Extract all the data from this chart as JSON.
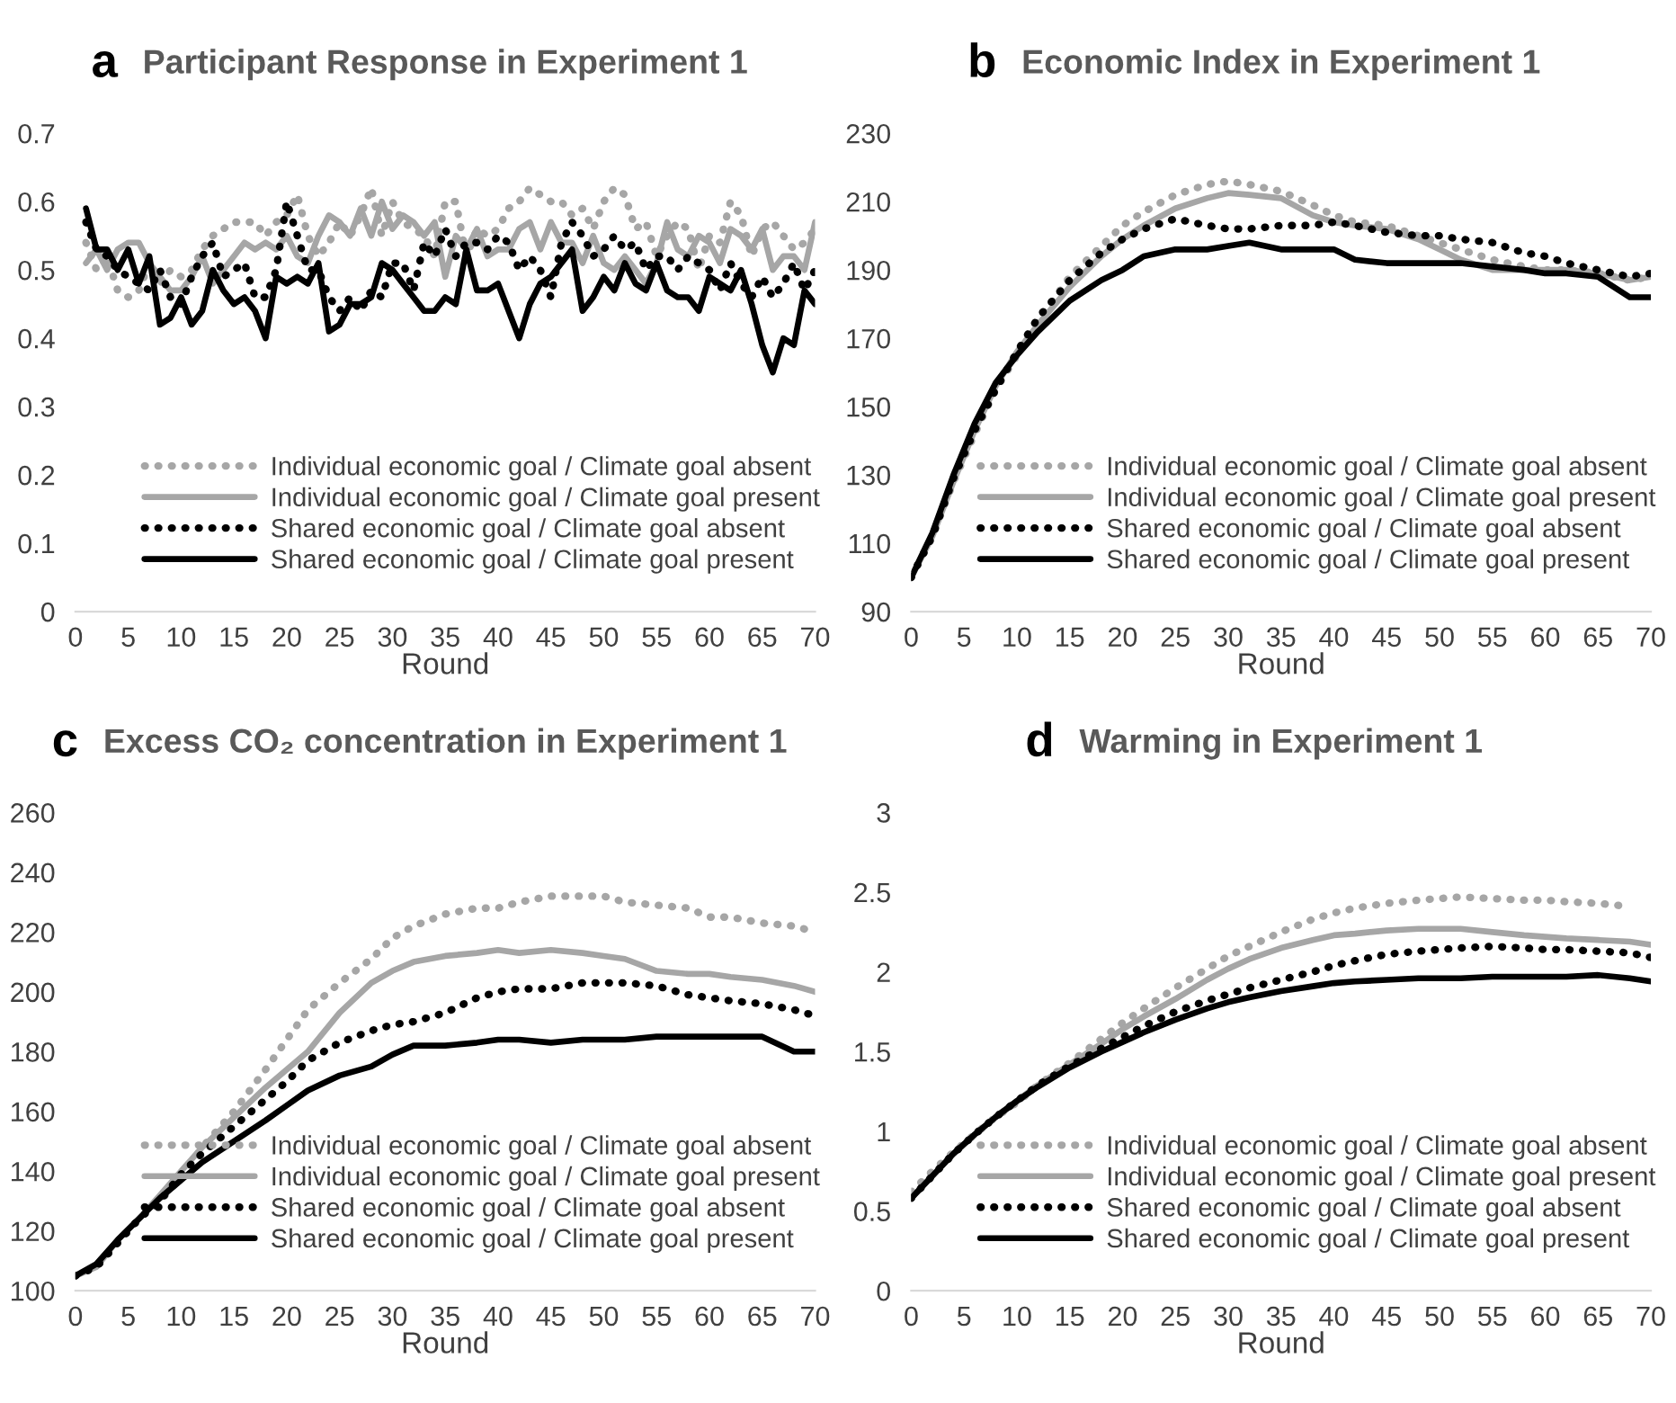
{
  "chart_data": [
    {
      "type": "line",
      "title": "Participant Response in Experiment 1",
      "annotations": [
        "a"
      ],
      "xlabel": "Round",
      "xlim": [
        0,
        70
      ],
      "xticks": [
        0,
        5,
        10,
        15,
        20,
        25,
        30,
        35,
        40,
        45,
        50,
        55,
        60,
        65,
        70
      ],
      "ylim": [
        0,
        0.7
      ],
      "yticks": [
        0,
        0.1,
        0.2,
        0.3,
        0.4,
        0.5,
        0.6,
        0.7
      ],
      "legend": "bottom",
      "x": [
        1,
        2,
        3,
        4,
        5,
        6,
        7,
        8,
        9,
        10,
        11,
        12,
        13,
        14,
        15,
        16,
        17,
        18,
        19,
        20,
        21,
        22,
        23,
        24,
        25,
        26,
        27,
        28,
        29,
        30,
        31,
        32,
        33,
        34,
        35,
        36,
        37,
        38,
        39,
        40,
        41,
        42,
        43,
        44,
        45,
        46,
        47,
        48,
        49,
        50,
        51,
        52,
        53,
        54,
        55,
        56,
        57,
        58,
        59,
        60,
        61,
        62,
        63,
        64,
        65,
        66,
        67,
        68,
        69,
        70
      ],
      "series": [
        {
          "name": "Individual economic goal / Climate goal absent",
          "color": "#a6a6a6",
          "line_style": "dotted",
          "values": [
            0.54,
            0.5,
            0.52,
            0.47,
            0.46,
            0.47,
            0.51,
            0.48,
            0.5,
            0.49,
            0.5,
            0.53,
            0.55,
            0.56,
            0.57,
            0.57,
            0.57,
            0.55,
            0.57,
            0.58,
            0.61,
            0.55,
            0.52,
            0.54,
            0.57,
            0.55,
            0.58,
            0.62,
            0.55,
            0.6,
            0.57,
            0.56,
            0.55,
            0.52,
            0.6,
            0.6,
            0.52,
            0.56,
            0.55,
            0.56,
            0.59,
            0.6,
            0.62,
            0.61,
            0.6,
            0.6,
            0.58,
            0.59,
            0.56,
            0.6,
            0.62,
            0.61,
            0.56,
            0.57,
            0.52,
            0.55,
            0.57,
            0.56,
            0.5,
            0.55,
            0.54,
            0.6,
            0.58,
            0.52,
            0.56,
            0.57,
            0.55,
            0.53,
            0.54,
            0.56
          ]
        },
        {
          "name": "Individual economic goal / Climate goal present",
          "color": "#a6a6a6",
          "line_style": "solid",
          "values": [
            0.51,
            0.53,
            0.5,
            0.53,
            0.54,
            0.54,
            0.51,
            0.49,
            0.47,
            0.47,
            0.49,
            0.52,
            0.48,
            0.5,
            0.52,
            0.54,
            0.53,
            0.54,
            0.53,
            0.55,
            0.52,
            0.51,
            0.55,
            0.58,
            0.57,
            0.55,
            0.59,
            0.55,
            0.6,
            0.56,
            0.58,
            0.57,
            0.55,
            0.57,
            0.49,
            0.55,
            0.53,
            0.56,
            0.52,
            0.53,
            0.53,
            0.56,
            0.57,
            0.53,
            0.57,
            0.54,
            0.54,
            0.51,
            0.55,
            0.51,
            0.5,
            0.52,
            0.5,
            0.48,
            0.51,
            0.57,
            0.53,
            0.52,
            0.55,
            0.54,
            0.51,
            0.56,
            0.55,
            0.53,
            0.56,
            0.5,
            0.52,
            0.52,
            0.5,
            0.57
          ]
        },
        {
          "name": "Shared economic goal / Climate goal absent",
          "color": "#000000",
          "line_style": "dotted",
          "values": [
            0.57,
            0.53,
            0.52,
            0.5,
            0.49,
            0.48,
            0.47,
            0.5,
            0.46,
            0.45,
            0.49,
            0.52,
            0.54,
            0.49,
            0.5,
            0.51,
            0.46,
            0.46,
            0.5,
            0.6,
            0.55,
            0.5,
            0.5,
            0.46,
            0.44,
            0.46,
            0.44,
            0.47,
            0.46,
            0.51,
            0.51,
            0.47,
            0.54,
            0.52,
            0.56,
            0.52,
            0.54,
            0.54,
            0.53,
            0.55,
            0.54,
            0.5,
            0.52,
            0.5,
            0.46,
            0.54,
            0.57,
            0.55,
            0.52,
            0.53,
            0.55,
            0.53,
            0.54,
            0.5,
            0.52,
            0.52,
            0.5,
            0.52,
            0.51,
            0.5,
            0.47,
            0.51,
            0.48,
            0.46,
            0.49,
            0.46,
            0.48,
            0.51,
            0.47,
            0.5
          ]
        },
        {
          "name": "Shared economic goal / Climate goal present",
          "color": "#000000",
          "line_style": "solid",
          "values": [
            0.59,
            0.53,
            0.53,
            0.5,
            0.53,
            0.48,
            0.52,
            0.42,
            0.43,
            0.46,
            0.42,
            0.44,
            0.5,
            0.47,
            0.45,
            0.46,
            0.44,
            0.4,
            0.49,
            0.48,
            0.49,
            0.48,
            0.51,
            0.41,
            0.42,
            0.45,
            0.45,
            0.46,
            0.51,
            0.5,
            0.48,
            0.46,
            0.44,
            0.44,
            0.46,
            0.45,
            0.53,
            0.47,
            0.47,
            0.48,
            0.44,
            0.4,
            0.45,
            0.48,
            0.49,
            0.51,
            0.53,
            0.44,
            0.46,
            0.49,
            0.47,
            0.51,
            0.48,
            0.47,
            0.51,
            0.47,
            0.46,
            0.46,
            0.44,
            0.49,
            0.48,
            0.47,
            0.5,
            0.45,
            0.39,
            0.35,
            0.4,
            0.39,
            0.47,
            0.45
          ]
        }
      ]
    },
    {
      "type": "line",
      "title": "Economic Index in Experiment 1",
      "annotations": [
        "b"
      ],
      "xlabel": "Round",
      "xlim": [
        0,
        70
      ],
      "xticks": [
        0,
        5,
        10,
        15,
        20,
        25,
        30,
        35,
        40,
        45,
        50,
        55,
        60,
        65,
        70
      ],
      "ylim": [
        90,
        230
      ],
      "yticks": [
        90,
        110,
        130,
        150,
        170,
        190,
        210,
        230
      ],
      "legend": "bottom",
      "x": [
        0,
        2,
        4,
        6,
        8,
        10,
        12,
        15,
        18,
        20,
        22,
        25,
        28,
        30,
        32,
        35,
        38,
        40,
        42,
        45,
        48,
        50,
        52,
        55,
        58,
        60,
        62,
        65,
        68,
        70
      ],
      "series": [
        {
          "name": "Individual economic goal / Climate goal absent",
          "color": "#a6a6a6",
          "line_style": "dotted",
          "values": [
            100,
            112,
            128,
            142,
            155,
            165,
            175,
            188,
            197,
            203,
            207,
            212,
            215,
            216,
            215,
            213,
            209,
            206,
            204,
            203,
            200,
            198,
            196,
            193,
            191,
            190,
            190,
            189,
            187,
            188
          ]
        },
        {
          "name": "Individual economic goal / Climate goal present",
          "color": "#a6a6a6",
          "line_style": "solid",
          "values": [
            100,
            112,
            128,
            143,
            156,
            166,
            174,
            185,
            194,
            199,
            203,
            208,
            211,
            212.5,
            212,
            211,
            206,
            204,
            203,
            202,
            199,
            196,
            193,
            190,
            190,
            190,
            190,
            189,
            187,
            188
          ]
        },
        {
          "name": "Shared economic goal / Climate goal absent",
          "color": "#000000",
          "line_style": "dotted",
          "values": [
            100,
            112,
            129,
            143,
            155,
            166,
            176,
            187,
            195,
            199,
            202,
            205,
            203,
            202,
            202,
            203,
            203,
            204,
            203,
            201,
            200,
            200,
            199,
            198,
            195,
            194,
            192,
            190,
            188,
            189
          ]
        },
        {
          "name": "Shared economic goal / Climate goal present",
          "color": "#000000",
          "line_style": "solid",
          "values": [
            100,
            113,
            130,
            145,
            157,
            165,
            172,
            181,
            187,
            190,
            194,
            196,
            196,
            197,
            198,
            196,
            196,
            196,
            193,
            192,
            192,
            192,
            192,
            191,
            190,
            189,
            189,
            188,
            182,
            182
          ]
        }
      ]
    },
    {
      "type": "line",
      "title": "Excess CO₂ concentration in Experiment 1",
      "annotations": [
        "c"
      ],
      "xlabel": "Round",
      "xlim": [
        0,
        70
      ],
      "xticks": [
        0,
        5,
        10,
        15,
        20,
        25,
        30,
        35,
        40,
        45,
        50,
        55,
        60,
        65,
        70
      ],
      "ylim": [
        100,
        260
      ],
      "yticks": [
        100,
        120,
        140,
        160,
        180,
        200,
        220,
        240,
        260
      ],
      "legend": "bottom",
      "x": [
        0,
        2,
        4,
        6,
        8,
        10,
        12,
        15,
        18,
        20,
        22,
        25,
        28,
        30,
        32,
        35,
        38,
        40,
        42,
        45,
        48,
        50,
        52,
        55,
        58,
        60,
        62,
        65,
        68,
        70
      ],
      "series": [
        {
          "name": "Individual economic goal / Climate goal absent",
          "color": "#a6a6a6",
          "line_style": "dotted",
          "values": [
            105,
            108,
            116,
            124,
            130,
            138,
            148,
            160,
            174,
            184,
            194,
            203,
            211,
            218,
            222,
            226,
            228,
            228,
            230,
            232,
            232,
            232,
            230,
            229,
            228,
            225,
            225,
            223,
            222,
            220
          ]
        },
        {
          "name": "Individual economic goal / Climate goal present",
          "color": "#a6a6a6",
          "line_style": "solid",
          "values": [
            105,
            108,
            117,
            124,
            132,
            140,
            148,
            158,
            168,
            174,
            180,
            193,
            203,
            207,
            210,
            212,
            213,
            214,
            213,
            214,
            213,
            212,
            211,
            207,
            206,
            206,
            205,
            204,
            202,
            200
          ]
        },
        {
          "name": "Shared economic goal / Climate goal absent",
          "color": "#000000",
          "line_style": "dotted",
          "values": [
            105,
            108,
            116,
            124,
            130,
            139,
            146,
            155,
            164,
            170,
            177,
            183,
            187,
            189,
            190,
            193,
            198,
            200,
            201,
            201,
            203,
            203,
            203,
            202,
            199,
            198,
            197,
            196,
            194,
            192
          ]
        },
        {
          "name": "Shared economic goal / Climate goal present",
          "color": "#000000",
          "line_style": "solid",
          "values": [
            105,
            109,
            117,
            124,
            131,
            137,
            143,
            150,
            157,
            162,
            167,
            172,
            175,
            179,
            182,
            182,
            183,
            184,
            184,
            183,
            184,
            184,
            184,
            185,
            185,
            185,
            185,
            185,
            180,
            180
          ]
        }
      ]
    },
    {
      "type": "line",
      "title": "Warming in Experiment 1",
      "annotations": [
        "d"
      ],
      "xlabel": "Round",
      "xlim": [
        0,
        70
      ],
      "xticks": [
        0,
        5,
        10,
        15,
        20,
        25,
        30,
        35,
        40,
        45,
        50,
        55,
        60,
        65,
        70
      ],
      "ylim": [
        0,
        3
      ],
      "yticks": [
        0,
        0.5,
        1,
        1.5,
        2,
        2.5,
        3
      ],
      "legend": "bottom",
      "x": [
        0,
        2,
        4,
        6,
        8,
        10,
        12,
        15,
        18,
        20,
        22,
        25,
        28,
        30,
        32,
        35,
        38,
        40,
        42,
        45,
        48,
        50,
        52,
        55,
        58,
        60,
        62,
        65,
        68,
        70
      ],
      "series": [
        {
          "name": "Individual economic goal / Climate goal absent",
          "color": "#a6a6a6",
          "line_style": "dotted",
          "values": [
            0.62,
            0.75,
            0.87,
            0.98,
            1.09,
            1.18,
            1.29,
            1.43,
            1.58,
            1.68,
            1.77,
            1.9,
            2.02,
            2.1,
            2.16,
            2.25,
            2.33,
            2.37,
            2.4,
            2.43,
            2.45,
            2.46,
            2.47,
            2.46,
            2.45,
            2.45,
            2.44,
            2.43,
            2.41,
            null
          ]
        },
        {
          "name": "Individual economic goal / Climate goal present",
          "color": "#a6a6a6",
          "line_style": "solid",
          "values": [
            0.58,
            0.72,
            0.86,
            0.98,
            1.09,
            1.19,
            1.29,
            1.42,
            1.55,
            1.64,
            1.72,
            1.83,
            1.95,
            2.02,
            2.08,
            2.15,
            2.2,
            2.23,
            2.24,
            2.26,
            2.27,
            2.27,
            2.27,
            2.25,
            2.23,
            2.22,
            2.21,
            2.2,
            2.19,
            2.17
          ]
        },
        {
          "name": "Shared economic goal / Climate goal absent",
          "color": "#000000",
          "line_style": "dotted",
          "values": [
            0.58,
            0.72,
            0.86,
            0.98,
            1.09,
            1.19,
            1.29,
            1.41,
            1.52,
            1.59,
            1.66,
            1.75,
            1.82,
            1.86,
            1.9,
            1.95,
            2.0,
            2.04,
            2.07,
            2.11,
            2.13,
            2.14,
            2.15,
            2.16,
            2.15,
            2.14,
            2.14,
            2.13,
            2.12,
            2.09
          ]
        },
        {
          "name": "Shared economic goal / Climate goal present",
          "color": "#000000",
          "line_style": "solid",
          "values": [
            0.58,
            0.72,
            0.86,
            0.98,
            1.09,
            1.19,
            1.28,
            1.4,
            1.5,
            1.56,
            1.62,
            1.7,
            1.77,
            1.81,
            1.84,
            1.88,
            1.91,
            1.93,
            1.94,
            1.95,
            1.96,
            1.96,
            1.96,
            1.97,
            1.97,
            1.97,
            1.97,
            1.98,
            1.96,
            1.94
          ]
        }
      ]
    }
  ]
}
